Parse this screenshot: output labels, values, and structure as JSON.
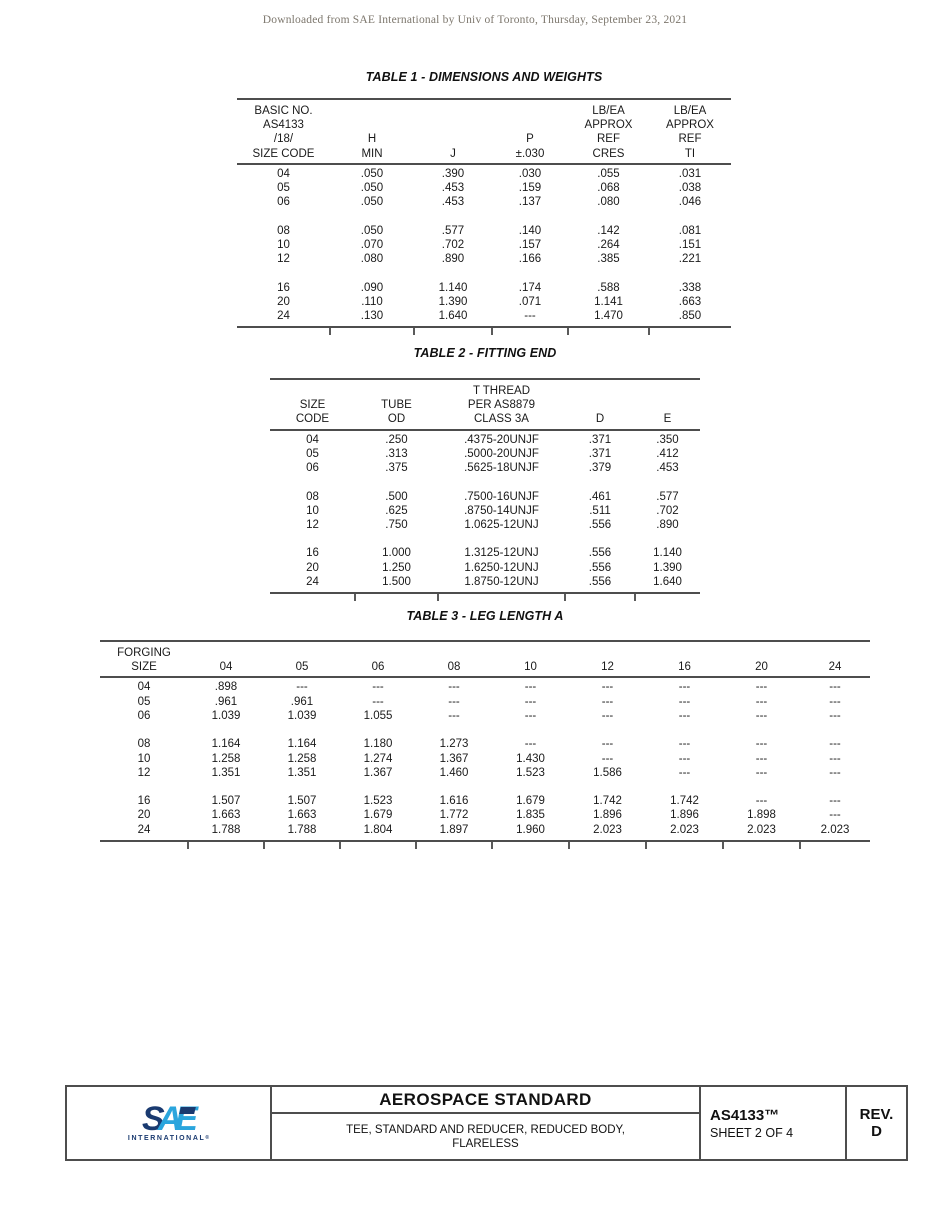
{
  "watermark": "Downloaded from SAE International by Univ of Toronto, Thursday, September 23, 2021",
  "table1": {
    "title": "TABLE 1 - DIMENSIONS AND WEIGHTS",
    "columns": [
      [
        "BASIC NO.",
        "AS4133",
        "/18/",
        "SIZE CODE"
      ],
      [
        "H",
        "MIN"
      ],
      [
        "J"
      ],
      [
        "P",
        "±.030"
      ],
      [
        "LB/EA",
        "APPROX",
        "REF",
        "CRES"
      ],
      [
        "LB/EA",
        "APPROX",
        "REF",
        "TI"
      ]
    ],
    "groups": [
      [
        [
          "04",
          ".050",
          ".390",
          ".030",
          ".055",
          ".031"
        ],
        [
          "05",
          ".050",
          ".453",
          ".159",
          ".068",
          ".038"
        ],
        [
          "06",
          ".050",
          ".453",
          ".137",
          ".080",
          ".046"
        ]
      ],
      [
        [
          "08",
          ".050",
          ".577",
          ".140",
          ".142",
          ".081"
        ],
        [
          "10",
          ".070",
          ".702",
          ".157",
          ".264",
          ".151"
        ],
        [
          "12",
          ".080",
          ".890",
          ".166",
          ".385",
          ".221"
        ]
      ],
      [
        [
          "16",
          ".090",
          "1.140",
          ".174",
          ".588",
          ".338"
        ],
        [
          "20",
          ".110",
          "1.390",
          ".071",
          "1.141",
          ".663"
        ],
        [
          "24",
          ".130",
          "1.640",
          "---",
          "1.470",
          ".850"
        ]
      ]
    ]
  },
  "table2": {
    "title": "TABLE 2 - FITTING END",
    "columns": [
      [
        "SIZE",
        "CODE"
      ],
      [
        "TUBE",
        "OD"
      ],
      [
        "T THREAD",
        "PER AS8879",
        "CLASS 3A"
      ],
      [
        "D"
      ],
      [
        "E"
      ]
    ],
    "groups": [
      [
        [
          "04",
          ".250",
          ".4375-20UNJF",
          ".371",
          ".350"
        ],
        [
          "05",
          ".313",
          ".5000-20UNJF",
          ".371",
          ".412"
        ],
        [
          "06",
          ".375",
          ".5625-18UNJF",
          ".379",
          ".453"
        ]
      ],
      [
        [
          "08",
          ".500",
          ".7500-16UNJF",
          ".461",
          ".577"
        ],
        [
          "10",
          ".625",
          ".8750-14UNJF",
          ".511",
          ".702"
        ],
        [
          "12",
          ".750",
          "1.0625-12UNJ",
          ".556",
          ".890"
        ]
      ],
      [
        [
          "16",
          "1.000",
          "1.3125-12UNJ",
          ".556",
          "1.140"
        ],
        [
          "20",
          "1.250",
          "1.6250-12UNJ",
          ".556",
          "1.390"
        ],
        [
          "24",
          "1.500",
          "1.8750-12UNJ",
          ".556",
          "1.640"
        ]
      ]
    ]
  },
  "table3": {
    "title": "TABLE 3 - LEG LENGTH A",
    "columns": [
      [
        "FORGING",
        "SIZE"
      ],
      [
        "04"
      ],
      [
        "05"
      ],
      [
        "06"
      ],
      [
        "08"
      ],
      [
        "10"
      ],
      [
        "12"
      ],
      [
        "16"
      ],
      [
        "20"
      ],
      [
        "24"
      ]
    ],
    "groups": [
      [
        [
          "04",
          ".898",
          "---",
          "---",
          "---",
          "---",
          "---",
          "---",
          "---",
          "---"
        ],
        [
          "05",
          ".961",
          ".961",
          "---",
          "---",
          "---",
          "---",
          "---",
          "---",
          "---"
        ],
        [
          "06",
          "1.039",
          "1.039",
          "1.055",
          "---",
          "---",
          "---",
          "---",
          "---",
          "---"
        ]
      ],
      [
        [
          "08",
          "1.164",
          "1.164",
          "1.180",
          "1.273",
          "---",
          "---",
          "---",
          "---",
          "---"
        ],
        [
          "10",
          "1.258",
          "1.258",
          "1.274",
          "1.367",
          "1.430",
          "---",
          "---",
          "---",
          "---"
        ],
        [
          "12",
          "1.351",
          "1.351",
          "1.367",
          "1.460",
          "1.523",
          "1.586",
          "---",
          "---",
          "---"
        ]
      ],
      [
        [
          "16",
          "1.507",
          "1.507",
          "1.523",
          "1.616",
          "1.679",
          "1.742",
          "1.742",
          "---",
          "---"
        ],
        [
          "20",
          "1.663",
          "1.663",
          "1.679",
          "1.772",
          "1.835",
          "1.896",
          "1.896",
          "1.898",
          "---"
        ],
        [
          "24",
          "1.788",
          "1.788",
          "1.804",
          "1.897",
          "1.960",
          "2.023",
          "2.023",
          "2.023",
          "2.023"
        ]
      ]
    ]
  },
  "footer": {
    "logo": {
      "letter_s": "S",
      "letter_a": "A",
      "letter_e": "E",
      "subtext": "INTERNATIONAL",
      "registered": "®",
      "navy": "#1a3a70",
      "light_blue": "#2aa5dd"
    },
    "standard_type": "AEROSPACE STANDARD",
    "title_line1": "TEE, STANDARD AND REDUCER, REDUCED BODY,",
    "title_line2": "FLARELESS",
    "document_number": "AS4133™",
    "sheet": "SHEET 2 OF 4",
    "rev_label": "REV.",
    "rev_value": "D"
  }
}
